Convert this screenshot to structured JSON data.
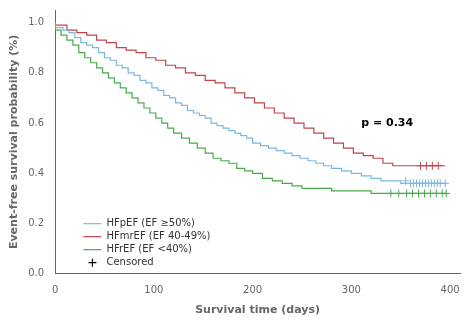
{
  "chart_data": {
    "type": "step",
    "xlabel": "Survival time (days)",
    "ylabel": "Event-free survival probability (%)",
    "xlim": [
      0,
      410
    ],
    "ylim": [
      0.0,
      1.05
    ],
    "xticks": [
      0,
      100,
      200,
      300,
      400
    ],
    "yticks": [
      {
        "value": 0.0,
        "label": "0.0"
      },
      0.2,
      0.4,
      0.6,
      0.8,
      {
        "value": 1.0,
        "label": "1.0"
      }
    ],
    "grid": false,
    "legend": "lower left",
    "annotations": [
      {
        "text": "p = 0.34",
        "x": 310,
        "y": 0.6
      }
    ],
    "series": [
      {
        "name": "HFpEF (EF ≥50%)",
        "color": "#7ab8e0",
        "x": [
          0,
          8,
          14,
          20,
          26,
          32,
          38,
          44,
          50,
          56,
          62,
          68,
          74,
          80,
          86,
          92,
          98,
          104,
          110,
          116,
          122,
          128,
          134,
          140,
          146,
          152,
          158,
          164,
          170,
          176,
          182,
          188,
          194,
          200,
          208,
          216,
          224,
          232,
          240,
          248,
          256,
          264,
          272,
          280,
          290,
          300,
          310,
          320,
          330,
          340,
          350,
          360,
          370,
          380,
          395
        ],
        "values": [
          1.0,
          0.98,
          0.97,
          0.96,
          0.94,
          0.92,
          0.91,
          0.9,
          0.88,
          0.86,
          0.85,
          0.83,
          0.82,
          0.8,
          0.79,
          0.77,
          0.76,
          0.74,
          0.73,
          0.71,
          0.7,
          0.68,
          0.67,
          0.65,
          0.64,
          0.63,
          0.62,
          0.6,
          0.59,
          0.58,
          0.57,
          0.56,
          0.55,
          0.54,
          0.52,
          0.51,
          0.5,
          0.49,
          0.48,
          0.47,
          0.46,
          0.45,
          0.44,
          0.43,
          0.42,
          0.41,
          0.4,
          0.39,
          0.38,
          0.37,
          0.37,
          0.36,
          0.36,
          0.36,
          0.36
        ],
        "censored_x": [
          355,
          360,
          363,
          366,
          369,
          372,
          375,
          378,
          381,
          384,
          387,
          390,
          395
        ],
        "censored_values": [
          0.37,
          0.36,
          0.36,
          0.36,
          0.36,
          0.36,
          0.36,
          0.36,
          0.36,
          0.36,
          0.36,
          0.36,
          0.36
        ]
      },
      {
        "name": "HFmrEF (EF 40-49%)",
        "color": "#c0444a",
        "x": [
          0,
          12,
          22,
          32,
          42,
          52,
          62,
          72,
          82,
          92,
          102,
          112,
          122,
          132,
          142,
          152,
          162,
          172,
          182,
          192,
          202,
          212,
          222,
          232,
          242,
          252,
          262,
          272,
          282,
          292,
          302,
          312,
          322,
          332,
          342,
          355,
          370,
          385,
          395
        ],
        "values": [
          1.0,
          0.99,
          0.97,
          0.96,
          0.95,
          0.93,
          0.92,
          0.9,
          0.89,
          0.88,
          0.86,
          0.85,
          0.83,
          0.82,
          0.8,
          0.79,
          0.77,
          0.76,
          0.74,
          0.72,
          0.7,
          0.68,
          0.66,
          0.64,
          0.62,
          0.6,
          0.58,
          0.56,
          0.54,
          0.52,
          0.5,
          0.48,
          0.47,
          0.46,
          0.44,
          0.43,
          0.43,
          0.43,
          0.43
        ],
        "censored_x": [
          370,
          376,
          382,
          388
        ],
        "censored_values": [
          0.43,
          0.43,
          0.43,
          0.43
        ]
      },
      {
        "name": "HFrEF (EF <40%)",
        "color": "#4aaa4a",
        "x": [
          0,
          6,
          12,
          18,
          24,
          30,
          36,
          42,
          48,
          54,
          60,
          66,
          72,
          78,
          84,
          90,
          96,
          102,
          108,
          114,
          120,
          128,
          136,
          144,
          152,
          160,
          168,
          176,
          184,
          192,
          200,
          210,
          220,
          230,
          240,
          250,
          260,
          270,
          280,
          290,
          300,
          310,
          320,
          330,
          340,
          355,
          370,
          385,
          395
        ],
        "values": [
          1.0,
          0.97,
          0.95,
          0.93,
          0.91,
          0.88,
          0.86,
          0.84,
          0.82,
          0.8,
          0.78,
          0.76,
          0.74,
          0.72,
          0.7,
          0.68,
          0.66,
          0.64,
          0.62,
          0.6,
          0.58,
          0.56,
          0.54,
          0.52,
          0.5,
          0.48,
          0.46,
          0.45,
          0.44,
          0.42,
          0.41,
          0.4,
          0.38,
          0.37,
          0.36,
          0.35,
          0.34,
          0.34,
          0.34,
          0.33,
          0.33,
          0.33,
          0.33,
          0.32,
          0.32,
          0.32,
          0.32,
          0.32,
          0.32
        ],
        "censored_x": [
          340,
          348,
          356,
          362,
          368,
          374,
          380,
          386,
          392,
          396
        ],
        "censored_values": [
          0.32,
          0.32,
          0.32,
          0.32,
          0.32,
          0.32,
          0.32,
          0.32,
          0.32,
          0.32
        ]
      }
    ],
    "censored": {
      "name": "Censored",
      "color": "#000000",
      "marker": "plus"
    }
  }
}
